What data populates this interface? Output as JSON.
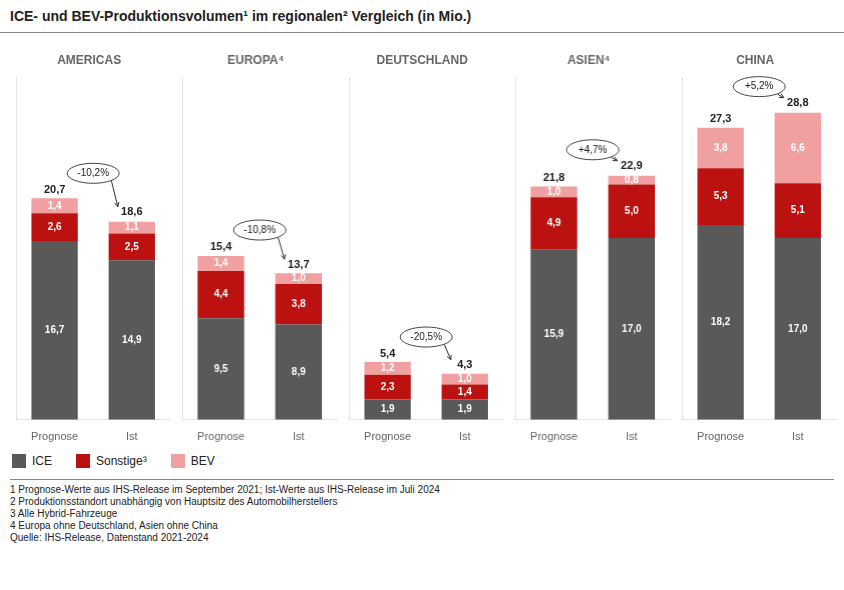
{
  "title": "ICE- und BEV-Produktionsvolumen¹ im regionalen² Vergleich (in Mio.)",
  "legend": "bottom",
  "annotations": [
    "1 Prognose-Werte aus IHS-Release im September 2021; Ist-Werte aus IHS-Release im Juli 2024",
    "2 Produktionsstandort unabhängig von Hauptsitz des Automobilherstellers",
    "3 Alle Hybrid-Fahrzeuge",
    "4 Europa ohne Deutschland, Asien ohne China",
    "Quelle: IHS-Release, Datenstand 2021-2024"
  ],
  "chart_data": [
    {
      "type": "bar",
      "title": "AMERICAS",
      "categories": [
        "Prognose",
        "Ist"
      ],
      "series": [
        {
          "name": "ICE",
          "color": "#595959",
          "values": [
            16.7,
            14.9
          ],
          "value_labels": [
            "16,7",
            "14,9"
          ]
        },
        {
          "name": "Sonstige³",
          "color": "#bb1111",
          "values": [
            2.6,
            2.5
          ],
          "value_labels": [
            "2,6",
            "2,5"
          ]
        },
        {
          "name": "BEV",
          "color": "#f0a0a0",
          "values": [
            1.4,
            1.1
          ],
          "value_labels": [
            "1,4",
            "1,1"
          ]
        }
      ],
      "totals": [
        20.7,
        18.6
      ],
      "total_labels": [
        "20,7",
        "18,6"
      ],
      "annotation": "-10,2%",
      "ylim": [
        0,
        32
      ],
      "stacked": true,
      "data_labels": true,
      "grid": false,
      "tick_labels": "x"
    },
    {
      "type": "bar",
      "title": "EUROPA⁴",
      "categories": [
        "Prognose",
        "Ist"
      ],
      "series": [
        {
          "name": "ICE",
          "color": "#595959",
          "values": [
            9.5,
            8.9
          ],
          "value_labels": [
            "9,5",
            "8,9"
          ]
        },
        {
          "name": "Sonstige³",
          "color": "#bb1111",
          "values": [
            4.4,
            3.8
          ],
          "value_labels": [
            "4,4",
            "3,8"
          ]
        },
        {
          "name": "BEV",
          "color": "#f0a0a0",
          "values": [
            1.4,
            1.0
          ],
          "value_labels": [
            "1,4",
            "1,0"
          ]
        }
      ],
      "totals": [
        15.4,
        13.7
      ],
      "total_labels": [
        "15,4",
        "13,7"
      ],
      "annotation": "-10,8%",
      "ylim": [
        0,
        32
      ],
      "stacked": true,
      "data_labels": true,
      "grid": false,
      "tick_labels": "x"
    },
    {
      "type": "bar",
      "title": "DEUTSCHLAND",
      "categories": [
        "Prognose",
        "Ist"
      ],
      "series": [
        {
          "name": "ICE",
          "color": "#595959",
          "values": [
            1.9,
            1.9
          ],
          "value_labels": [
            "1,9",
            "1,9"
          ]
        },
        {
          "name": "Sonstige³",
          "color": "#bb1111",
          "values": [
            2.3,
            1.4
          ],
          "value_labels": [
            "2,3",
            "1,4"
          ]
        },
        {
          "name": "BEV",
          "color": "#f0a0a0",
          "values": [
            1.2,
            1.0
          ],
          "value_labels": [
            "1,2",
            "1,0"
          ]
        }
      ],
      "totals": [
        5.4,
        4.3
      ],
      "total_labels": [
        "5,4",
        "4,3"
      ],
      "annotation": "-20,5%",
      "ylim": [
        0,
        32
      ],
      "stacked": true,
      "data_labels": true,
      "grid": false,
      "tick_labels": "x"
    },
    {
      "type": "bar",
      "title": "ASIEN⁴",
      "categories": [
        "Prognose",
        "Ist"
      ],
      "series": [
        {
          "name": "ICE",
          "color": "#595959",
          "values": [
            15.9,
            17.0
          ],
          "value_labels": [
            "15,9",
            "17,0"
          ]
        },
        {
          "name": "Sonstige³",
          "color": "#bb1111",
          "values": [
            4.9,
            5.0
          ],
          "value_labels": [
            "4,9",
            "5,0"
          ]
        },
        {
          "name": "BEV",
          "color": "#f0a0a0",
          "values": [
            1.0,
            0.8
          ],
          "value_labels": [
            "1,0",
            "0,8"
          ]
        }
      ],
      "totals": [
        21.8,
        22.9
      ],
      "total_labels": [
        "21,8",
        "22,9"
      ],
      "annotation": "+4,7%",
      "ylim": [
        0,
        32
      ],
      "stacked": true,
      "data_labels": true,
      "grid": false,
      "tick_labels": "x"
    },
    {
      "type": "bar",
      "title": "CHINA",
      "categories": [
        "Prognose",
        "Ist"
      ],
      "series": [
        {
          "name": "ICE",
          "color": "#595959",
          "values": [
            18.2,
            17.0
          ],
          "value_labels": [
            "18,2",
            "17,0"
          ]
        },
        {
          "name": "Sonstige³",
          "color": "#bb1111",
          "values": [
            5.3,
            5.1
          ],
          "value_labels": [
            "5,3",
            "5,1"
          ]
        },
        {
          "name": "BEV",
          "color": "#f0a0a0",
          "values": [
            3.8,
            6.6
          ],
          "value_labels": [
            "3,8",
            "6,6"
          ]
        }
      ],
      "totals": [
        27.3,
        28.8
      ],
      "total_labels": [
        "27,3",
        "28,8"
      ],
      "annotation": "+5,2%",
      "ylim": [
        0,
        32
      ],
      "stacked": true,
      "data_labels": true,
      "grid": false,
      "tick_labels": "x"
    }
  ]
}
